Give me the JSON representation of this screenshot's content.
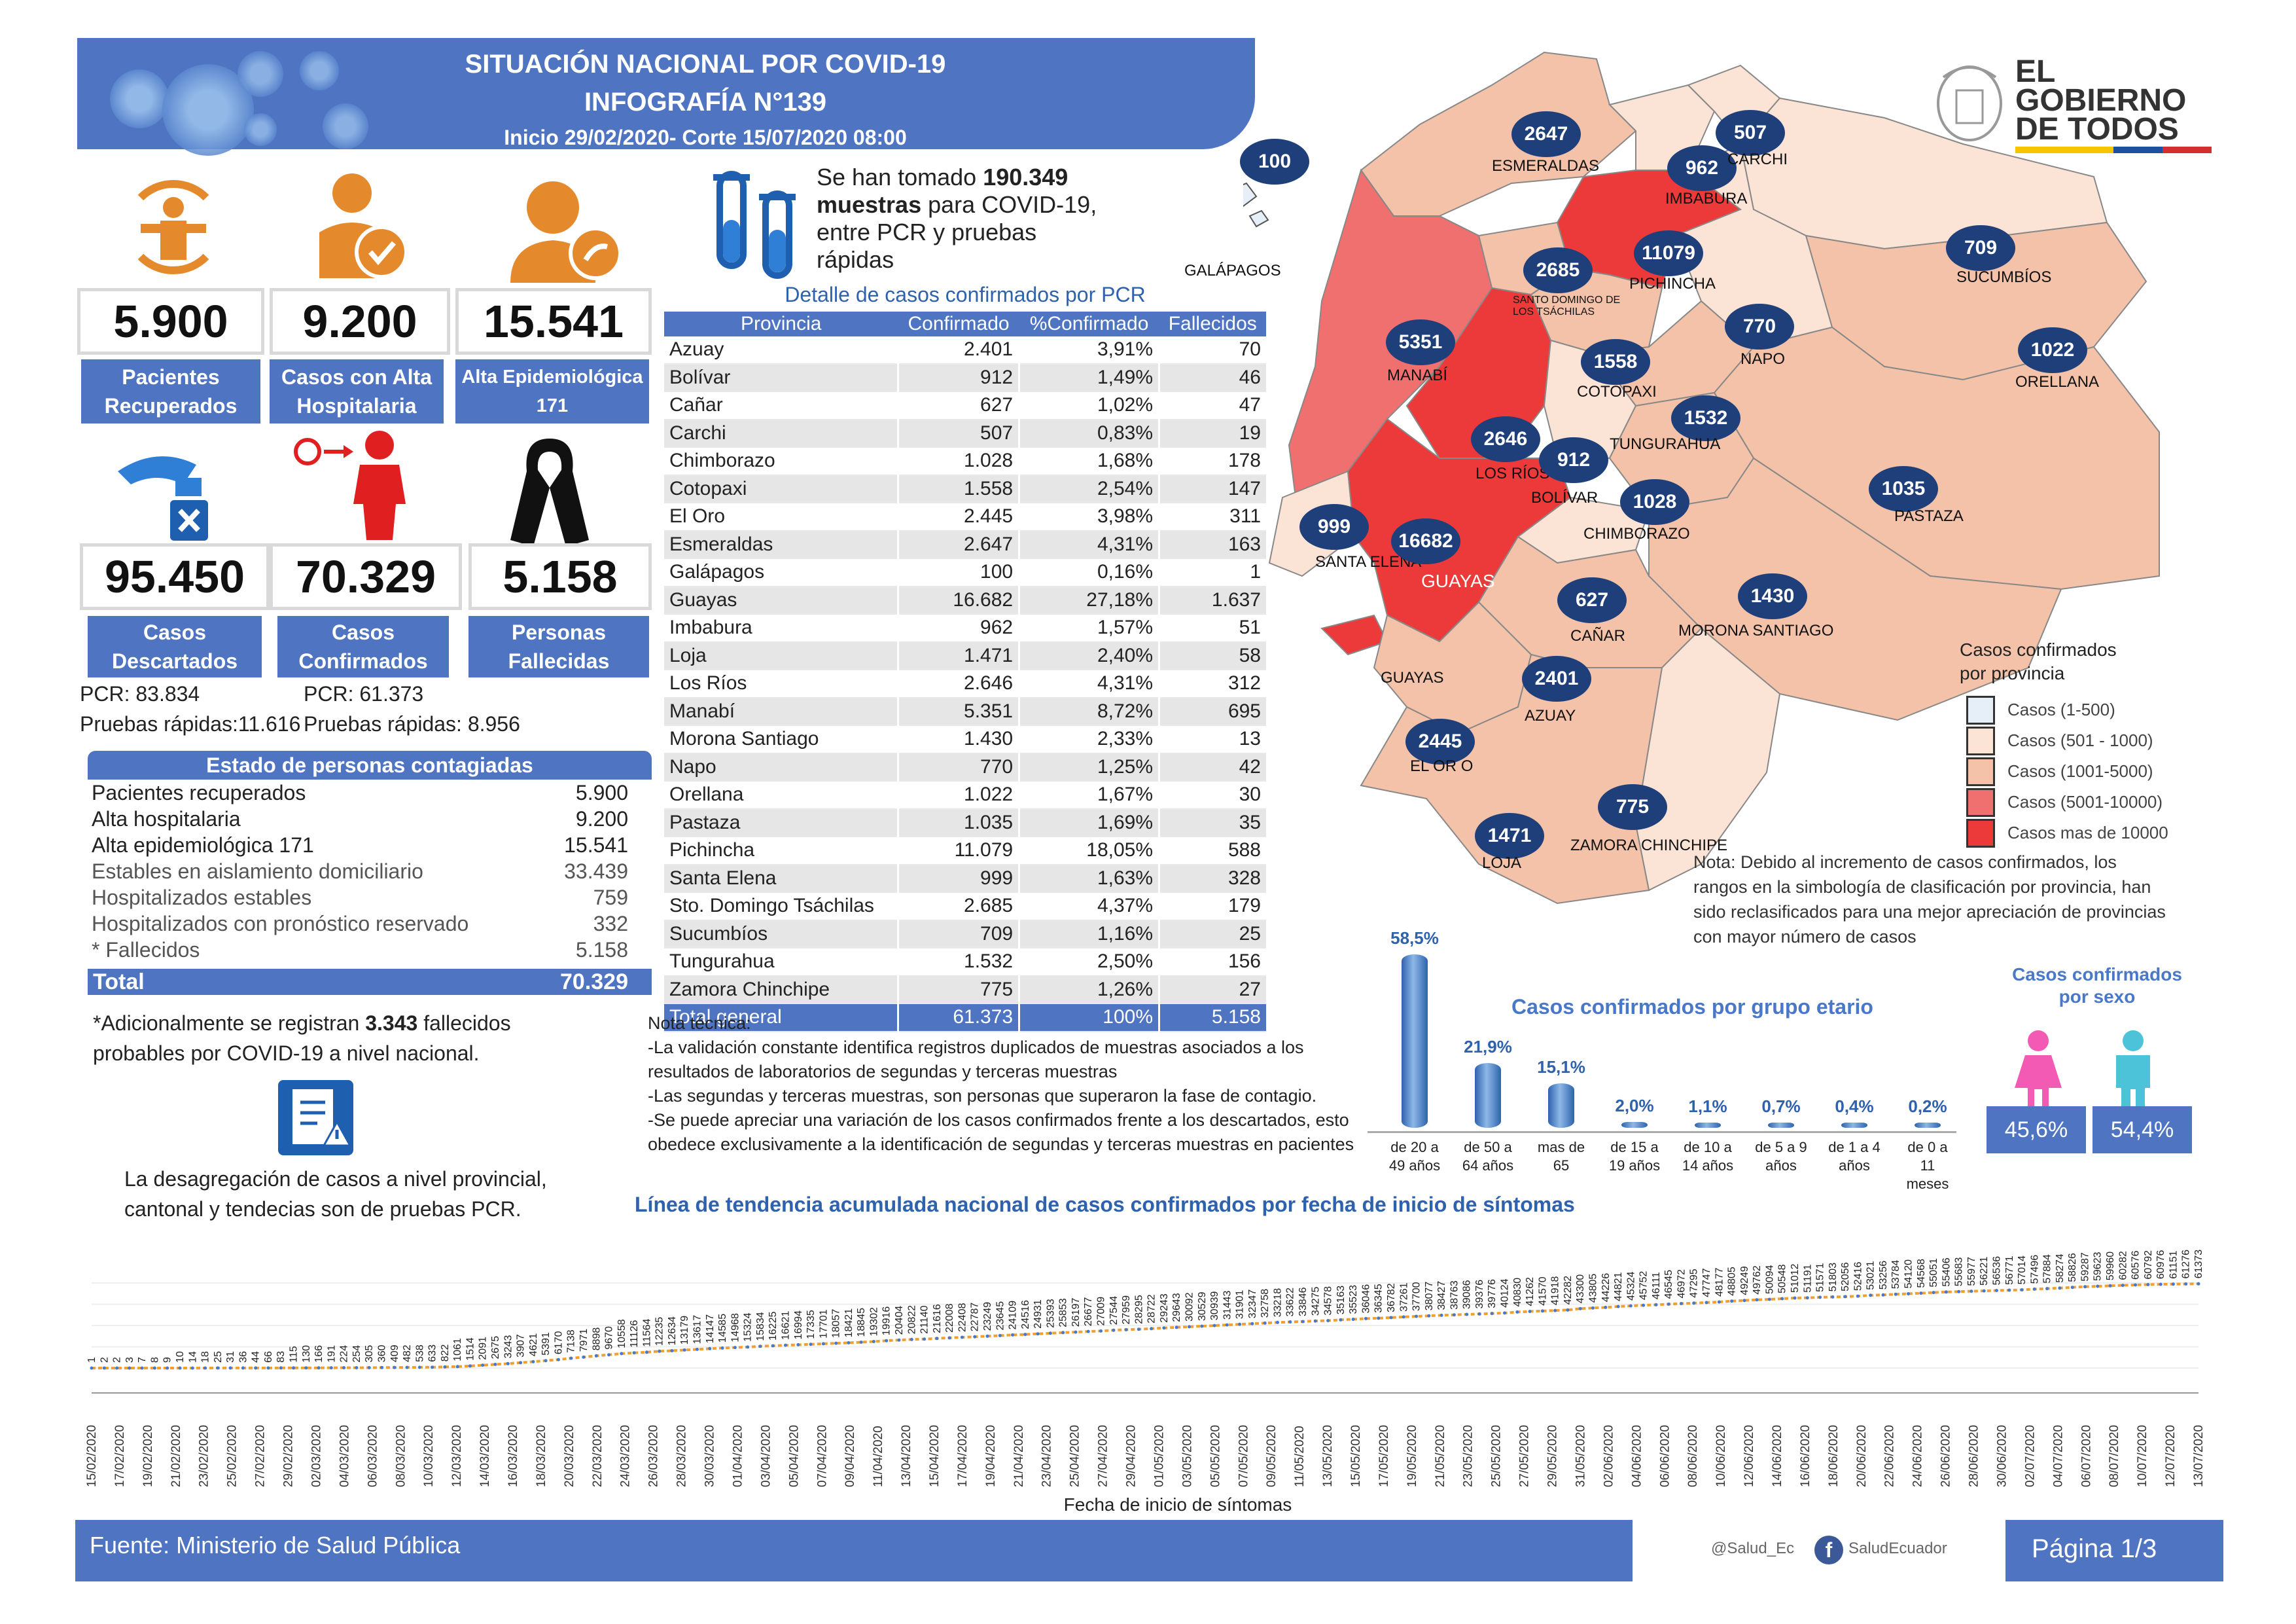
{
  "header": {
    "title": "SITUACIÓN NACIONAL POR  COVID-19",
    "subtitle": "INFOGRAFÍA N°139",
    "period": "Inicio 29/02/2020- Corte 15/07/2020 08:00"
  },
  "logo": {
    "line1": "EL",
    "line2": "GOBIERNO",
    "line3": "DE TODOS"
  },
  "stats": {
    "recuperados": {
      "value": "5.900",
      "label1": "Pacientes",
      "label2": "Recuperados"
    },
    "alta_hosp": {
      "value": "9.200",
      "label1": "Casos con Alta",
      "label2": "Hospitalaria"
    },
    "alta_epi": {
      "value": "15.541",
      "label1": "Alta Epidemiológica",
      "label2": "171"
    },
    "descartados": {
      "value": "95.450",
      "label1": "Casos",
      "label2": "Descartados"
    },
    "confirmados": {
      "value": "70.329",
      "label1": "Casos",
      "label2": "Confirmados"
    },
    "fallecidas": {
      "value": "5.158",
      "label1": "Personas",
      "label2": "Fallecidas"
    }
  },
  "pcr_breakdown": {
    "pcr_desc": "PCR:  83.834",
    "rapidas_desc": "Pruebas rápidas:11.616",
    "pcr_conf": "PCR: 61.373",
    "rapidas_conf": "Pruebas rápidas: 8.956"
  },
  "muestras": {
    "pre": "Se han tomado ",
    "num": "190.349",
    "line2_bold": "muestras",
    "line2": "  para COVID-19,",
    "line3": "entre PCR y pruebas",
    "line4": "rápidas"
  },
  "table": {
    "title": "Detalle de casos confirmados por PCR",
    "headers": [
      "Provincia",
      "Confirmado",
      "%Confirmado",
      "Fallecidos"
    ],
    "rows": [
      [
        "Azuay",
        "2.401",
        "3,91%",
        "70"
      ],
      [
        "Bolívar",
        "912",
        "1,49%",
        "46"
      ],
      [
        "Cañar",
        "627",
        "1,02%",
        "47"
      ],
      [
        "Carchi",
        "507",
        "0,83%",
        "19"
      ],
      [
        "Chimborazo",
        "1.028",
        "1,68%",
        "178"
      ],
      [
        "Cotopaxi",
        "1.558",
        "2,54%",
        "147"
      ],
      [
        "El Oro",
        "2.445",
        "3,98%",
        "311"
      ],
      [
        "Esmeraldas",
        "2.647",
        "4,31%",
        "163"
      ],
      [
        "Galápagos",
        "100",
        "0,16%",
        "1"
      ],
      [
        "Guayas",
        "16.682",
        "27,18%",
        "1.637"
      ],
      [
        "Imbabura",
        "962",
        "1,57%",
        "51"
      ],
      [
        "Loja",
        "1.471",
        "2,40%",
        "58"
      ],
      [
        "Los Ríos",
        "2.646",
        "4,31%",
        "312"
      ],
      [
        "Manabí",
        "5.351",
        "8,72%",
        "695"
      ],
      [
        "Morona Santiago",
        "1.430",
        "2,33%",
        "13"
      ],
      [
        "Napo",
        "770",
        "1,25%",
        "42"
      ],
      [
        "Orellana",
        "1.022",
        "1,67%",
        "30"
      ],
      [
        "Pastaza",
        "1.035",
        "1,69%",
        "35"
      ],
      [
        "Pichincha",
        "11.079",
        "18,05%",
        "588"
      ],
      [
        "Santa Elena",
        "999",
        "1,63%",
        "328"
      ],
      [
        "Sto. Domingo Tsáchilas",
        "2.685",
        "4,37%",
        "179"
      ],
      [
        "Sucumbíos",
        "709",
        "1,16%",
        "25"
      ],
      [
        "Tungurahua",
        "1.532",
        "2,50%",
        "156"
      ],
      [
        "Zamora Chinchipe",
        "775",
        "1,26%",
        "27"
      ]
    ],
    "total": [
      "Total general",
      "61.373",
      "100%",
      "5.158"
    ]
  },
  "estado": {
    "title": "Estado de personas contagiadas",
    "rows": [
      [
        "Pacientes recuperados",
        "5.900"
      ],
      [
        "Alta hospitalaria",
        "9.200"
      ],
      [
        "Alta epidemiológica 171",
        "15.541"
      ],
      [
        "Estables en aislamiento domiciliario",
        "33.439"
      ],
      [
        "Hospitalizados estables",
        "759"
      ],
      [
        "Hospitalizados con pronóstico reservado",
        "332"
      ],
      [
        "* Fallecidos",
        "5.158"
      ]
    ],
    "total_label": "Total",
    "total_value": "70.329",
    "note_pre": "*Adicionalmente se registran ",
    "note_num": "3.343",
    "note_post": " fallecidos",
    "note_line2": "probables por COVID-19 a nivel nacional."
  },
  "desagregacion": {
    "line1": "La desagregación de casos a nivel provincial,",
    "line2": "cantonal y tendecias son  de pruebas PCR."
  },
  "nota": {
    "title": "Nota técnica:",
    "lines": [
      "-La validación constante identifica registros duplicados de muestras asociados a los",
      "resultados de laboratorios de segundas y terceras muestras",
      "-Las segundas y terceras muestras, son personas que superaron la fase de contagio.",
      "-Se puede apreciar una variación de los casos confirmados frente a los descartados, esto",
      "obedece exclusivamente a la identificación de segundas y terceras muestras en pacientes"
    ]
  },
  "map": {
    "provinces": [
      {
        "name": "ESMERALDAS",
        "value": "2647"
      },
      {
        "name": "IMBABURA",
        "value": "962"
      },
      {
        "name": "CARCHI",
        "value": "507"
      },
      {
        "name": "SUCUMBÍOS",
        "value": "709"
      },
      {
        "name": "PICHINCHA",
        "value": "11079"
      },
      {
        "name": "SANTO DOMINGO DE LOS TSÁCHILAS",
        "value": "2685"
      },
      {
        "name": "MANABÍ",
        "value": "5351"
      },
      {
        "name": "NAPO",
        "value": "770"
      },
      {
        "name": "ORELLANA",
        "value": "1022"
      },
      {
        "name": "COTOPAXI",
        "value": "1558"
      },
      {
        "name": "TUNGURAHUA",
        "value": "1532"
      },
      {
        "name": "LOS RÍOS",
        "value": "2646"
      },
      {
        "name": "BOLÍVAR",
        "value": "912"
      },
      {
        "name": "CHIMBORAZO",
        "value": "1028"
      },
      {
        "name": "PASTAZA",
        "value": "1035"
      },
      {
        "name": "SANTA ELENA",
        "value": "999"
      },
      {
        "name": "GUAYAS",
        "value": "16682"
      },
      {
        "name": "CAÑAR",
        "value": "627"
      },
      {
        "name": "MORONA SANTIAGO",
        "value": "1430"
      },
      {
        "name": "AZUAY",
        "value": "2401"
      },
      {
        "name": "EL OR O",
        "value": "2445"
      },
      {
        "name": "ZAMORA CHINCHIPE",
        "value": "775"
      },
      {
        "name": "LOJA",
        "value": "1471"
      },
      {
        "name": "GALÁPAGOS",
        "value": "100"
      }
    ],
    "extra_label": "GUAYAS",
    "legend_title1": "Casos confirmados",
    "legend_title2": "por provincia",
    "legend": [
      {
        "label": "Casos (1-500)",
        "color": "#e6eef8"
      },
      {
        "label": "Casos (501 - 1000)",
        "color": "#fbe3d6"
      },
      {
        "label": "Casos (1001-5000)",
        "color": "#f3c2a8"
      },
      {
        "label": "Casos (5001-10000)",
        "color": "#f07070"
      },
      {
        "label": "Casos mas de 10000",
        "color": "#ec3a3a"
      }
    ],
    "note_bold": "Nota:",
    "note_lines": [
      " Debido al incremento de casos confirmados, los",
      "rangos en la simbología de clasificación por provincia, han",
      "sido reclasificados para una mejor apreciación de provincias",
      "con mayor número de casos"
    ]
  },
  "age_chart": {
    "title": "Casos confirmados por grupo etario",
    "groups": [
      {
        "label1": "de 20 a",
        "label2": "49 años",
        "label3": "",
        "pct": 58.5,
        "text": "58,5%"
      },
      {
        "label1": "de 50 a",
        "label2": "64 años",
        "label3": "",
        "pct": 21.9,
        "text": "21,9%"
      },
      {
        "label1": "mas de",
        "label2": "65",
        "label3": "",
        "pct": 15.1,
        "text": "15,1%"
      },
      {
        "label1": "de 15 a",
        "label2": "19 años",
        "label3": "",
        "pct": 2.0,
        "text": "2,0%"
      },
      {
        "label1": "de 10 a",
        "label2": "14 años",
        "label3": "",
        "pct": 1.1,
        "text": "1,1%"
      },
      {
        "label1": "de 5 a 9",
        "label2": "años",
        "label3": "",
        "pct": 0.7,
        "text": "0,7%"
      },
      {
        "label1": "de 1 a 4",
        "label2": "años",
        "label3": "",
        "pct": 0.4,
        "text": "0,4%"
      },
      {
        "label1": "de 0 a",
        "label2": "11",
        "label3": "meses",
        "pct": 0.2,
        "text": "0,2%"
      }
    ]
  },
  "sex_chart": {
    "title1": "Casos confirmados",
    "title2": "por sexo",
    "female": "45,6%",
    "male": "54,4%",
    "female_color": "#f25ab4",
    "male_color": "#4cc3d9"
  },
  "chart_data": {
    "type": "line",
    "title": "Línea de tendencia acumulada nacional de casos confirmados por fecha de inicio de síntomas",
    "xlabel": "Fecha de inicio de síntomas",
    "x_ticks": [
      "15/02/2020",
      "17/02/2020",
      "19/02/2020",
      "21/02/2020",
      "23/02/2020",
      "25/02/2020",
      "27/02/2020",
      "29/02/2020",
      "02/03/2020",
      "04/03/2020",
      "06/03/2020",
      "08/03/2020",
      "10/03/2020",
      "12/03/2020",
      "14/03/2020",
      "16/03/2020",
      "18/03/2020",
      "20/03/2020",
      "22/03/2020",
      "24/03/2020",
      "26/03/2020",
      "28/03/2020",
      "30/03/2020",
      "01/04/2020",
      "03/04/2020",
      "05/04/2020",
      "07/04/2020",
      "09/04/2020",
      "11/04/2020",
      "13/04/2020",
      "15/04/2020",
      "17/04/2020",
      "19/04/2020",
      "21/04/2020",
      "23/04/2020",
      "25/04/2020",
      "27/04/2020",
      "29/04/2020",
      "01/05/2020",
      "03/05/2020",
      "05/05/2020",
      "07/05/2020",
      "09/05/2020",
      "11/05/2020",
      "13/05/2020",
      "15/05/2020",
      "17/05/2020",
      "19/05/2020",
      "21/05/2020",
      "23/05/2020",
      "25/05/2020",
      "27/05/2020",
      "29/05/2020",
      "31/05/2020",
      "02/06/2020",
      "04/06/2020",
      "06/06/2020",
      "08/06/2020",
      "10/06/2020",
      "12/06/2020",
      "14/06/2020",
      "16/06/2020",
      "18/06/2020",
      "20/06/2020",
      "22/06/2020",
      "24/06/2020",
      "26/06/2020",
      "28/06/2020",
      "30/06/2020",
      "02/07/2020",
      "04/07/2020",
      "06/07/2020",
      "08/07/2020",
      "10/07/2020",
      "12/07/2020",
      "13/07/2020"
    ],
    "values": [
      1,
      2,
      2,
      3,
      7,
      8,
      9,
      10,
      14,
      18,
      25,
      31,
      36,
      44,
      66,
      83,
      115,
      130,
      166,
      191,
      224,
      254,
      305,
      360,
      409,
      482,
      538,
      633,
      822,
      1061,
      1514,
      2091,
      2675,
      3243,
      3907,
      4621,
      5391,
      6170,
      7138,
      7971,
      8898,
      9670,
      10558,
      11126,
      11564,
      12235,
      12634,
      13179,
      13617,
      14147,
      14585,
      14968,
      15324,
      15834,
      16225,
      16621,
      16994,
      17335,
      17701,
      18057,
      18421,
      18845,
      19302,
      19916,
      20404,
      20822,
      21140,
      21616,
      22008,
      22408,
      22787,
      23249,
      23645,
      24109,
      24516,
      24931,
      25393,
      25853,
      26197,
      26677,
      27009,
      27544,
      27959,
      28295,
      28722,
      29243,
      29643,
      30092,
      30529,
      30939,
      31443,
      31901,
      32347,
      32758,
      33218,
      33622,
      33846,
      34275,
      34578,
      35163,
      35523,
      36046,
      36345,
      36782,
      37261,
      37700,
      38077,
      38427,
      38763,
      39086,
      39376,
      39776,
      40124,
      40830,
      41262,
      41570,
      41918,
      42282,
      43300,
      43805,
      44226,
      44821,
      45324,
      45752,
      46111,
      46545,
      46972,
      47295,
      47747,
      48177,
      48805,
      49249,
      49762,
      50094,
      50548,
      51012,
      51191,
      51571,
      51803,
      52056,
      52416,
      53021,
      53256,
      53784,
      54120,
      54568,
      55051,
      55406,
      55683,
      55977,
      56221,
      56536,
      56771,
      57014,
      57496,
      57884,
      58274,
      58826,
      59287,
      59623,
      59960,
      60282,
      60576,
      60792,
      60976,
      61151,
      61276,
      61373
    ]
  },
  "footer": {
    "fuente_label": "Fuente:",
    "fuente": " Ministerio de Salud Pública",
    "twitter": "@Salud_Ec",
    "facebook": "SaludEcuador",
    "page": "Página 1/3"
  }
}
